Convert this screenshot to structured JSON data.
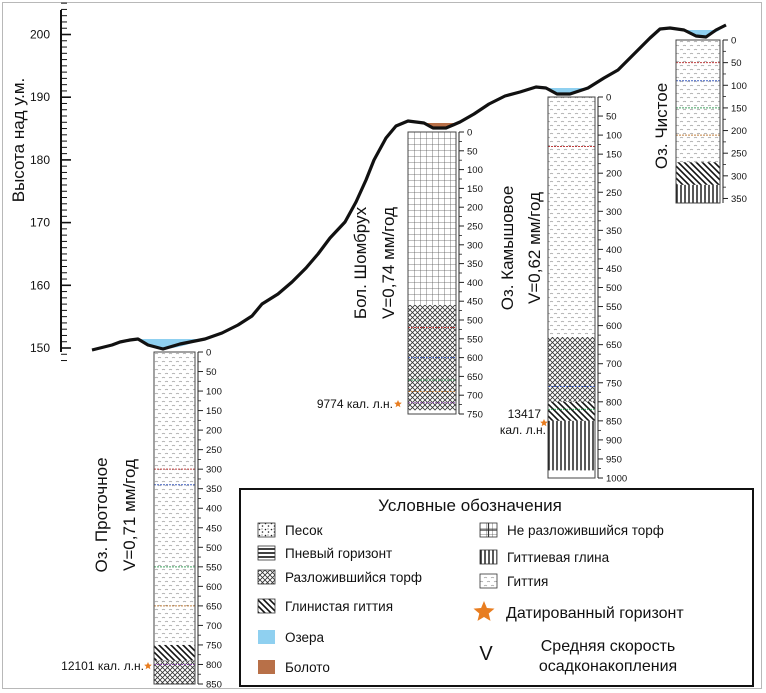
{
  "y_axis": {
    "label": "Высота над у.м.",
    "ticks": [
      "150",
      "160",
      "170",
      "180",
      "190",
      "200"
    ]
  },
  "columns": [
    {
      "id": "prot",
      "title": "Оз. Проточное",
      "rate": "V=0,71 мм/год",
      "depth_ticks": [
        "0",
        "50",
        "100",
        "150",
        "200",
        "250",
        "300",
        "350",
        "400",
        "450",
        "500",
        "550",
        "600",
        "650",
        "700",
        "750",
        "800",
        "850"
      ],
      "date": "12101 кал. л.н.",
      "layers": [
        {
          "from": 0,
          "to": 750,
          "fill": "gyttja"
        },
        {
          "from": 750,
          "to": 790,
          "fill": "clay_gyttja"
        },
        {
          "from": 790,
          "to": 850,
          "fill": "xhatch"
        }
      ]
    },
    {
      "id": "shom",
      "title": "Бол. Шомбрух",
      "rate": "V=0,74 мм/год",
      "depth_ticks": [
        "0",
        "50",
        "100",
        "150",
        "200",
        "250",
        "300",
        "350",
        "400",
        "450",
        "500",
        "550",
        "600",
        "650",
        "700",
        "750"
      ],
      "date": "9774 кал. л.н.",
      "layers": [
        {
          "from": 0,
          "to": 460,
          "fill": "grid"
        },
        {
          "from": 460,
          "to": 740,
          "fill": "xhatch"
        }
      ]
    },
    {
      "id": "kam",
      "title": "Оз. Камышовое",
      "rate": "V=0,62 мм/год",
      "depth_ticks": [
        "0",
        "50",
        "100",
        "150",
        "200",
        "250",
        "300",
        "350",
        "400",
        "450",
        "500",
        "550",
        "600",
        "650",
        "700",
        "750",
        "800",
        "850",
        "900",
        "950",
        "1000"
      ],
      "date_line1": "13417",
      "date_line2": "кал. л.н.",
      "layers": [
        {
          "from": 0,
          "to": 630,
          "fill": "gyttja"
        },
        {
          "from": 630,
          "to": 800,
          "fill": "xhatch"
        },
        {
          "from": 800,
          "to": 850,
          "fill": "clay_gyttja"
        },
        {
          "from": 850,
          "to": 980,
          "fill": "vlines"
        }
      ]
    },
    {
      "id": "chist",
      "title": "Оз. Чистое",
      "rate": "",
      "depth_ticks": [
        "0",
        "50",
        "100",
        "150",
        "200",
        "250",
        "300",
        "350"
      ],
      "layers": [
        {
          "from": 0,
          "to": 270,
          "fill": "gyttja"
        },
        {
          "from": 270,
          "to": 320,
          "fill": "clay_gyttja"
        },
        {
          "from": 320,
          "to": 360,
          "fill": "vlines"
        }
      ]
    }
  ],
  "legend": {
    "title": "Условные обозначения",
    "items": [
      {
        "label": "Песок",
        "symbol": "sand"
      },
      {
        "label": "Пневый горизонт",
        "symbol": "hlines"
      },
      {
        "label": "Разложившийся торф",
        "symbol": "xhatch"
      },
      {
        "label": "Глинистая гиттия",
        "symbol": "clay_gyttja"
      },
      {
        "label": "Озера",
        "symbol": "lake"
      },
      {
        "label": "Болото",
        "symbol": "bog"
      },
      {
        "label": "Не разложившийся торф",
        "symbol": "grid"
      },
      {
        "label": "Гиттиевая глина",
        "symbol": "vlines"
      },
      {
        "label": "Гиттия",
        "symbol": "gyttja"
      },
      {
        "label": "Датированный горизонт",
        "symbol": "star"
      },
      {
        "label": "Средняя скорость осадконакопления",
        "symbol": "v-letter",
        "line1": "Средняя скорость",
        "line2": "осадконакопления"
      }
    ],
    "v_symbol": "V"
  },
  "colors": {
    "lake": "#8fd0f0",
    "bog": "#b87048",
    "star": "#e87d20",
    "profile": "#111111"
  }
}
